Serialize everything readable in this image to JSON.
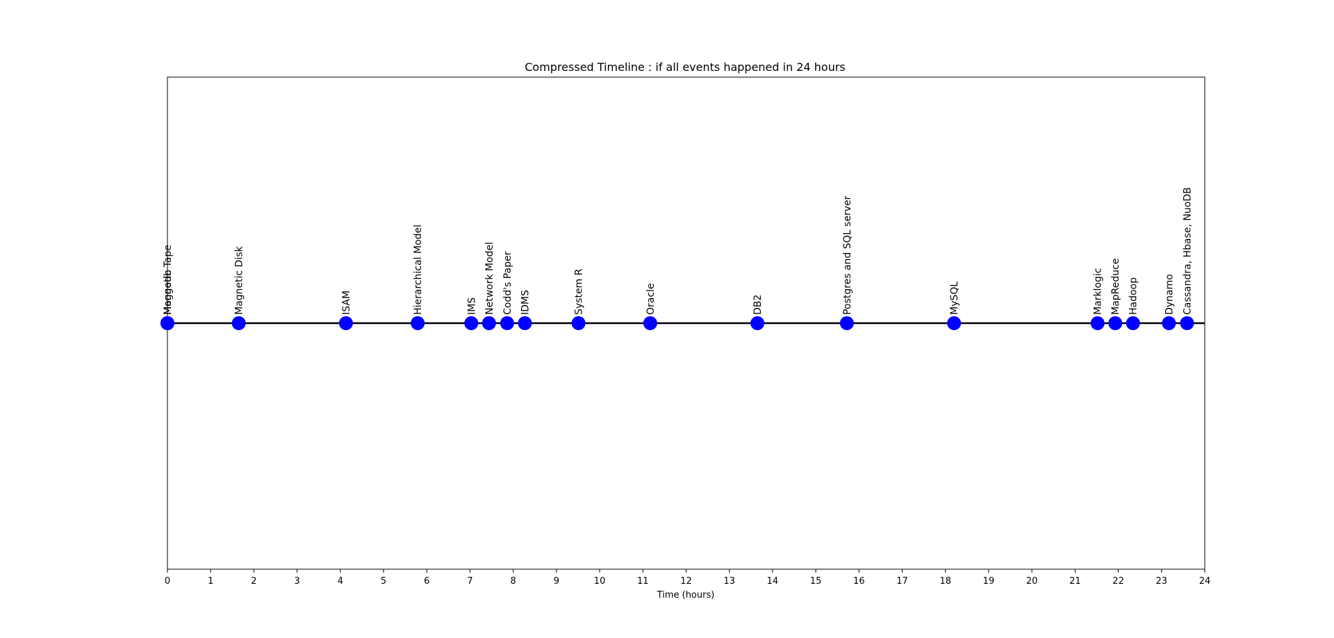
{
  "chart_data": {
    "type": "scatter",
    "title": "Compressed Timeline : if all events happened in 24 hours",
    "xlabel": "Time (hours)",
    "ylabel": "",
    "xlim": [
      0,
      24
    ],
    "xticks": [
      "0",
      "1",
      "2",
      "3",
      "4",
      "5",
      "6",
      "7",
      "8",
      "9",
      "10",
      "11",
      "12",
      "13",
      "14",
      "15",
      "16",
      "17",
      "18",
      "19",
      "20",
      "21",
      "22",
      "23",
      "24"
    ],
    "marker_color": "#0000ff",
    "line_color": "#000000",
    "grid": false,
    "points": [
      {
        "x": 0.0,
        "label": "Magnetic Tape"
      },
      {
        "x": 0.0,
        "label": "Mongodb"
      },
      {
        "x": 1.65,
        "label": "Magnetic Disk"
      },
      {
        "x": 4.13,
        "label": "ISAM"
      },
      {
        "x": 5.79,
        "label": "Hierarchical Model"
      },
      {
        "x": 7.03,
        "label": "IMS"
      },
      {
        "x": 7.44,
        "label": "Network Model"
      },
      {
        "x": 7.86,
        "label": "Codd's Paper"
      },
      {
        "x": 8.27,
        "label": "IDMS"
      },
      {
        "x": 9.51,
        "label": "System R"
      },
      {
        "x": 11.17,
        "label": "Oracle"
      },
      {
        "x": 13.65,
        "label": "DB2"
      },
      {
        "x": 15.72,
        "label": "Postgres and SQL server"
      },
      {
        "x": 18.2,
        "label": "MySQL"
      },
      {
        "x": 21.52,
        "label": "Marklogic"
      },
      {
        "x": 21.93,
        "label": "MapReduce"
      },
      {
        "x": 22.34,
        "label": "Hadoop"
      },
      {
        "x": 23.17,
        "label": "Dynamo"
      },
      {
        "x": 23.59,
        "label": "Cassandra, Hbase, NuoDB"
      }
    ]
  }
}
